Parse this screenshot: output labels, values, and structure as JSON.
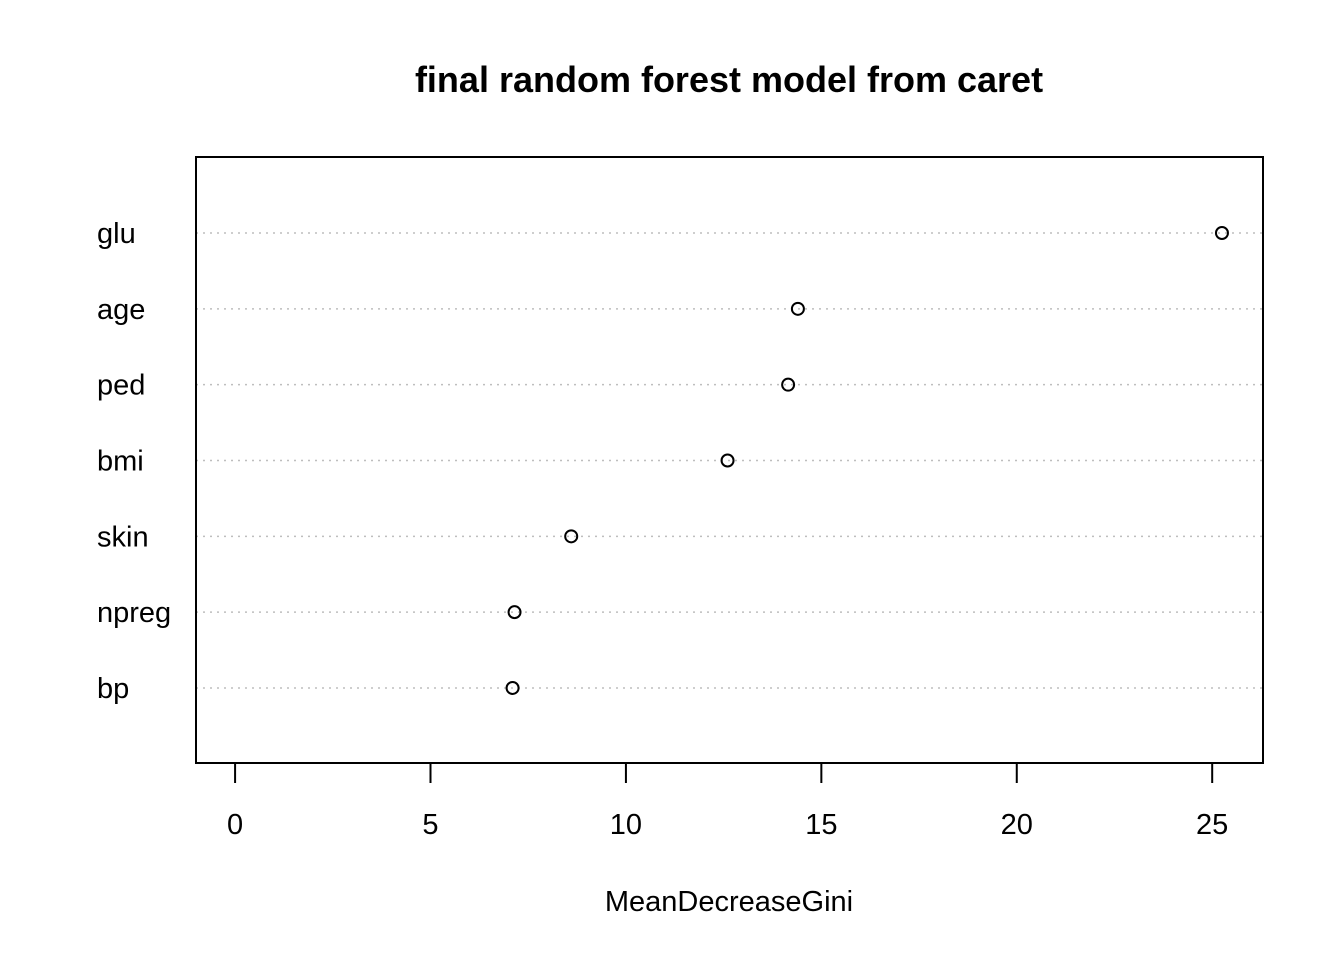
{
  "chart_data": {
    "type": "scatter",
    "subtype": "dotchart",
    "title": "final random forest model from caret",
    "xlabel": "MeanDecreaseGini",
    "ylabel": "",
    "xlim": [
      -1,
      26.3
    ],
    "xticks": [
      0,
      5,
      10,
      15,
      20,
      25
    ],
    "categories": [
      "glu",
      "age",
      "ped",
      "bmi",
      "skin",
      "npreg",
      "bp"
    ],
    "values": [
      25.25,
      14.4,
      14.15,
      12.6,
      8.6,
      7.15,
      7.1
    ],
    "grid": "horizontal dotted lines per category",
    "marker": "open circle",
    "colors": {
      "points": "#000000",
      "grid": "#bebebe",
      "frame": "#000000"
    }
  }
}
